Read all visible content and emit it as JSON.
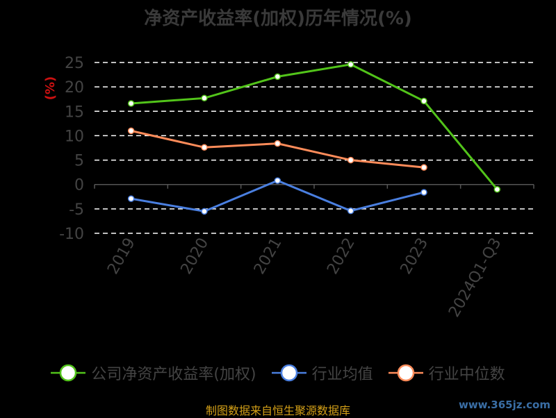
{
  "chart_data": {
    "type": "line",
    "title": "净资产收益率(加权)历年情况(%)",
    "ylabel": "(%)",
    "xlabel": "",
    "categories": [
      "2019",
      "2020",
      "2021",
      "2022",
      "2023",
      "2024Q1-Q3"
    ],
    "ylim": [
      -10,
      25
    ],
    "yticks": [
      25,
      20,
      15,
      10,
      5,
      0,
      -5,
      -10
    ],
    "grid": true,
    "legend_position": "bottom",
    "series": [
      {
        "name": "公司净资产收益率(加权)",
        "color": "#52c41a",
        "values": [
          16.6,
          17.7,
          22.1,
          24.6,
          17.1,
          -1.0
        ]
      },
      {
        "name": "行业均值",
        "color": "#4a7fe0",
        "values": [
          -2.9,
          -5.5,
          0.8,
          -5.4,
          -1.6,
          null
        ]
      },
      {
        "name": "行业中位数",
        "color": "#ff8c5a",
        "values": [
          11.0,
          7.6,
          8.4,
          5.0,
          3.5,
          null
        ]
      }
    ]
  },
  "footer": "制图数据来自恒生聚源数据库",
  "watermark": "www.365jz.com"
}
